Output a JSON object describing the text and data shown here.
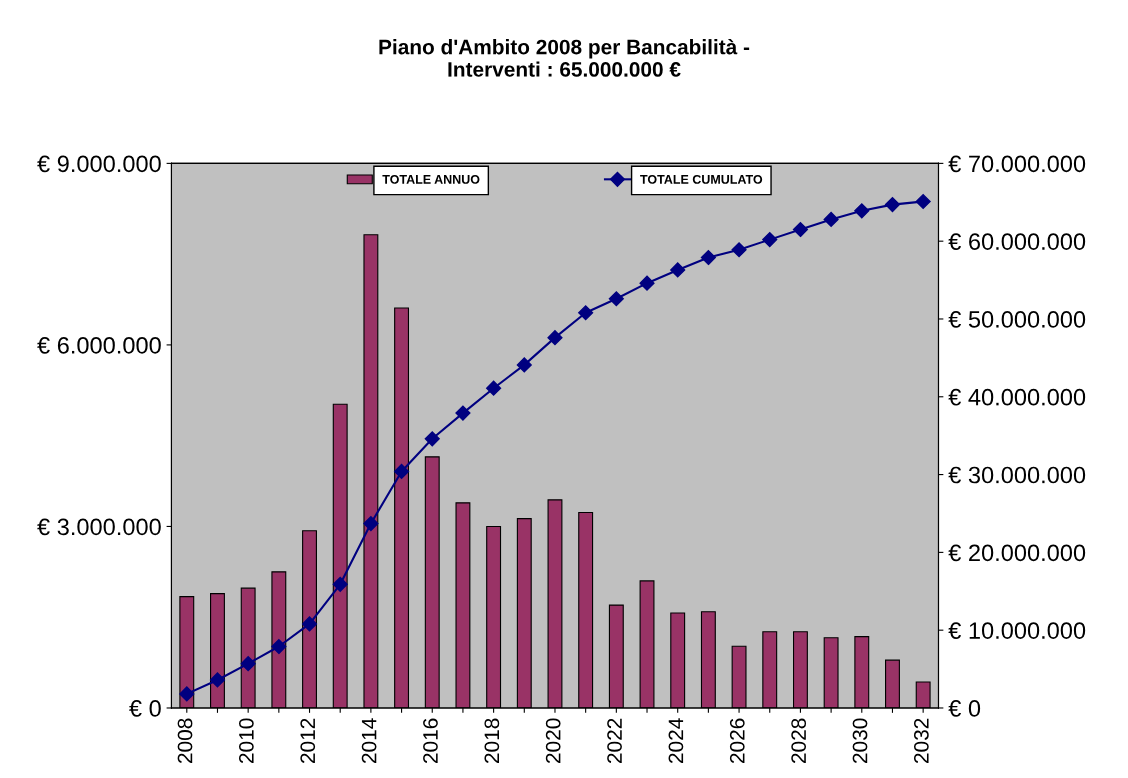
{
  "chart_data": {
    "type": "bar",
    "title": "Piano d'Ambito 2008 per Bancabilità -\nInterventi : 65.000.000 €",
    "categories": [
      "2008",
      null,
      "2010",
      null,
      "2012",
      null,
      "2014",
      null,
      "2016",
      null,
      "2018",
      null,
      "2020",
      null,
      "2022",
      null,
      "2024",
      null,
      "2026",
      null,
      "2028",
      null,
      "2030",
      null,
      "2032"
    ],
    "series": [
      {
        "name": "TOTALE ANNUO",
        "color": "#993366",
        "values": [
          1840000,
          1890000,
          1980000,
          2250000,
          2930000,
          5020000,
          7820000,
          6610000,
          4150000,
          3390000,
          3000000,
          3130000,
          3440000,
          3230000,
          1700000,
          2100000,
          1570000,
          1590000,
          1020000,
          1260000,
          1260000,
          1160000,
          1180000,
          790000,
          430000
        ]
      },
      {
        "name": "TOTALE CUMULATO",
        "type": "line",
        "axis": "y2",
        "color": "#000080",
        "values": [
          1800000,
          3600000,
          5700000,
          7900000,
          10800000,
          15900000,
          23700000,
          30400000,
          34600000,
          37900000,
          41100000,
          44100000,
          47600000,
          50800000,
          52600000,
          54600000,
          56300000,
          57900000,
          58900000,
          60200000,
          61500000,
          62800000,
          63900000,
          64700000,
          65100000
        ]
      }
    ],
    "ylim": [
      0,
      9000000
    ],
    "yticks": [
      {
        "value": 0,
        "label": "€ 0"
      },
      {
        "value": 3000000,
        "label": "€ 3.000.000"
      },
      {
        "value": 6000000,
        "label": "€ 6.000.000"
      },
      {
        "value": 9000000,
        "label": "€ 9.000.000"
      }
    ],
    "y2lim": [
      0,
      70000000
    ],
    "y2ticks": [
      {
        "value": 0,
        "label": "€ 0"
      },
      {
        "value": 10000000,
        "label": "€ 10.000.000"
      },
      {
        "value": 20000000,
        "label": "€ 20.000.000"
      },
      {
        "value": 30000000,
        "label": "€ 30.000.000"
      },
      {
        "value": 40000000,
        "label": "€ 40.000.000"
      },
      {
        "value": 50000000,
        "label": "€ 50.000.000"
      },
      {
        "value": 60000000,
        "label": "€ 60.000.000"
      },
      {
        "value": 70000000,
        "label": "€ 70.000.000"
      }
    ],
    "marker": "diamond",
    "grid": false,
    "legend": "top"
  }
}
